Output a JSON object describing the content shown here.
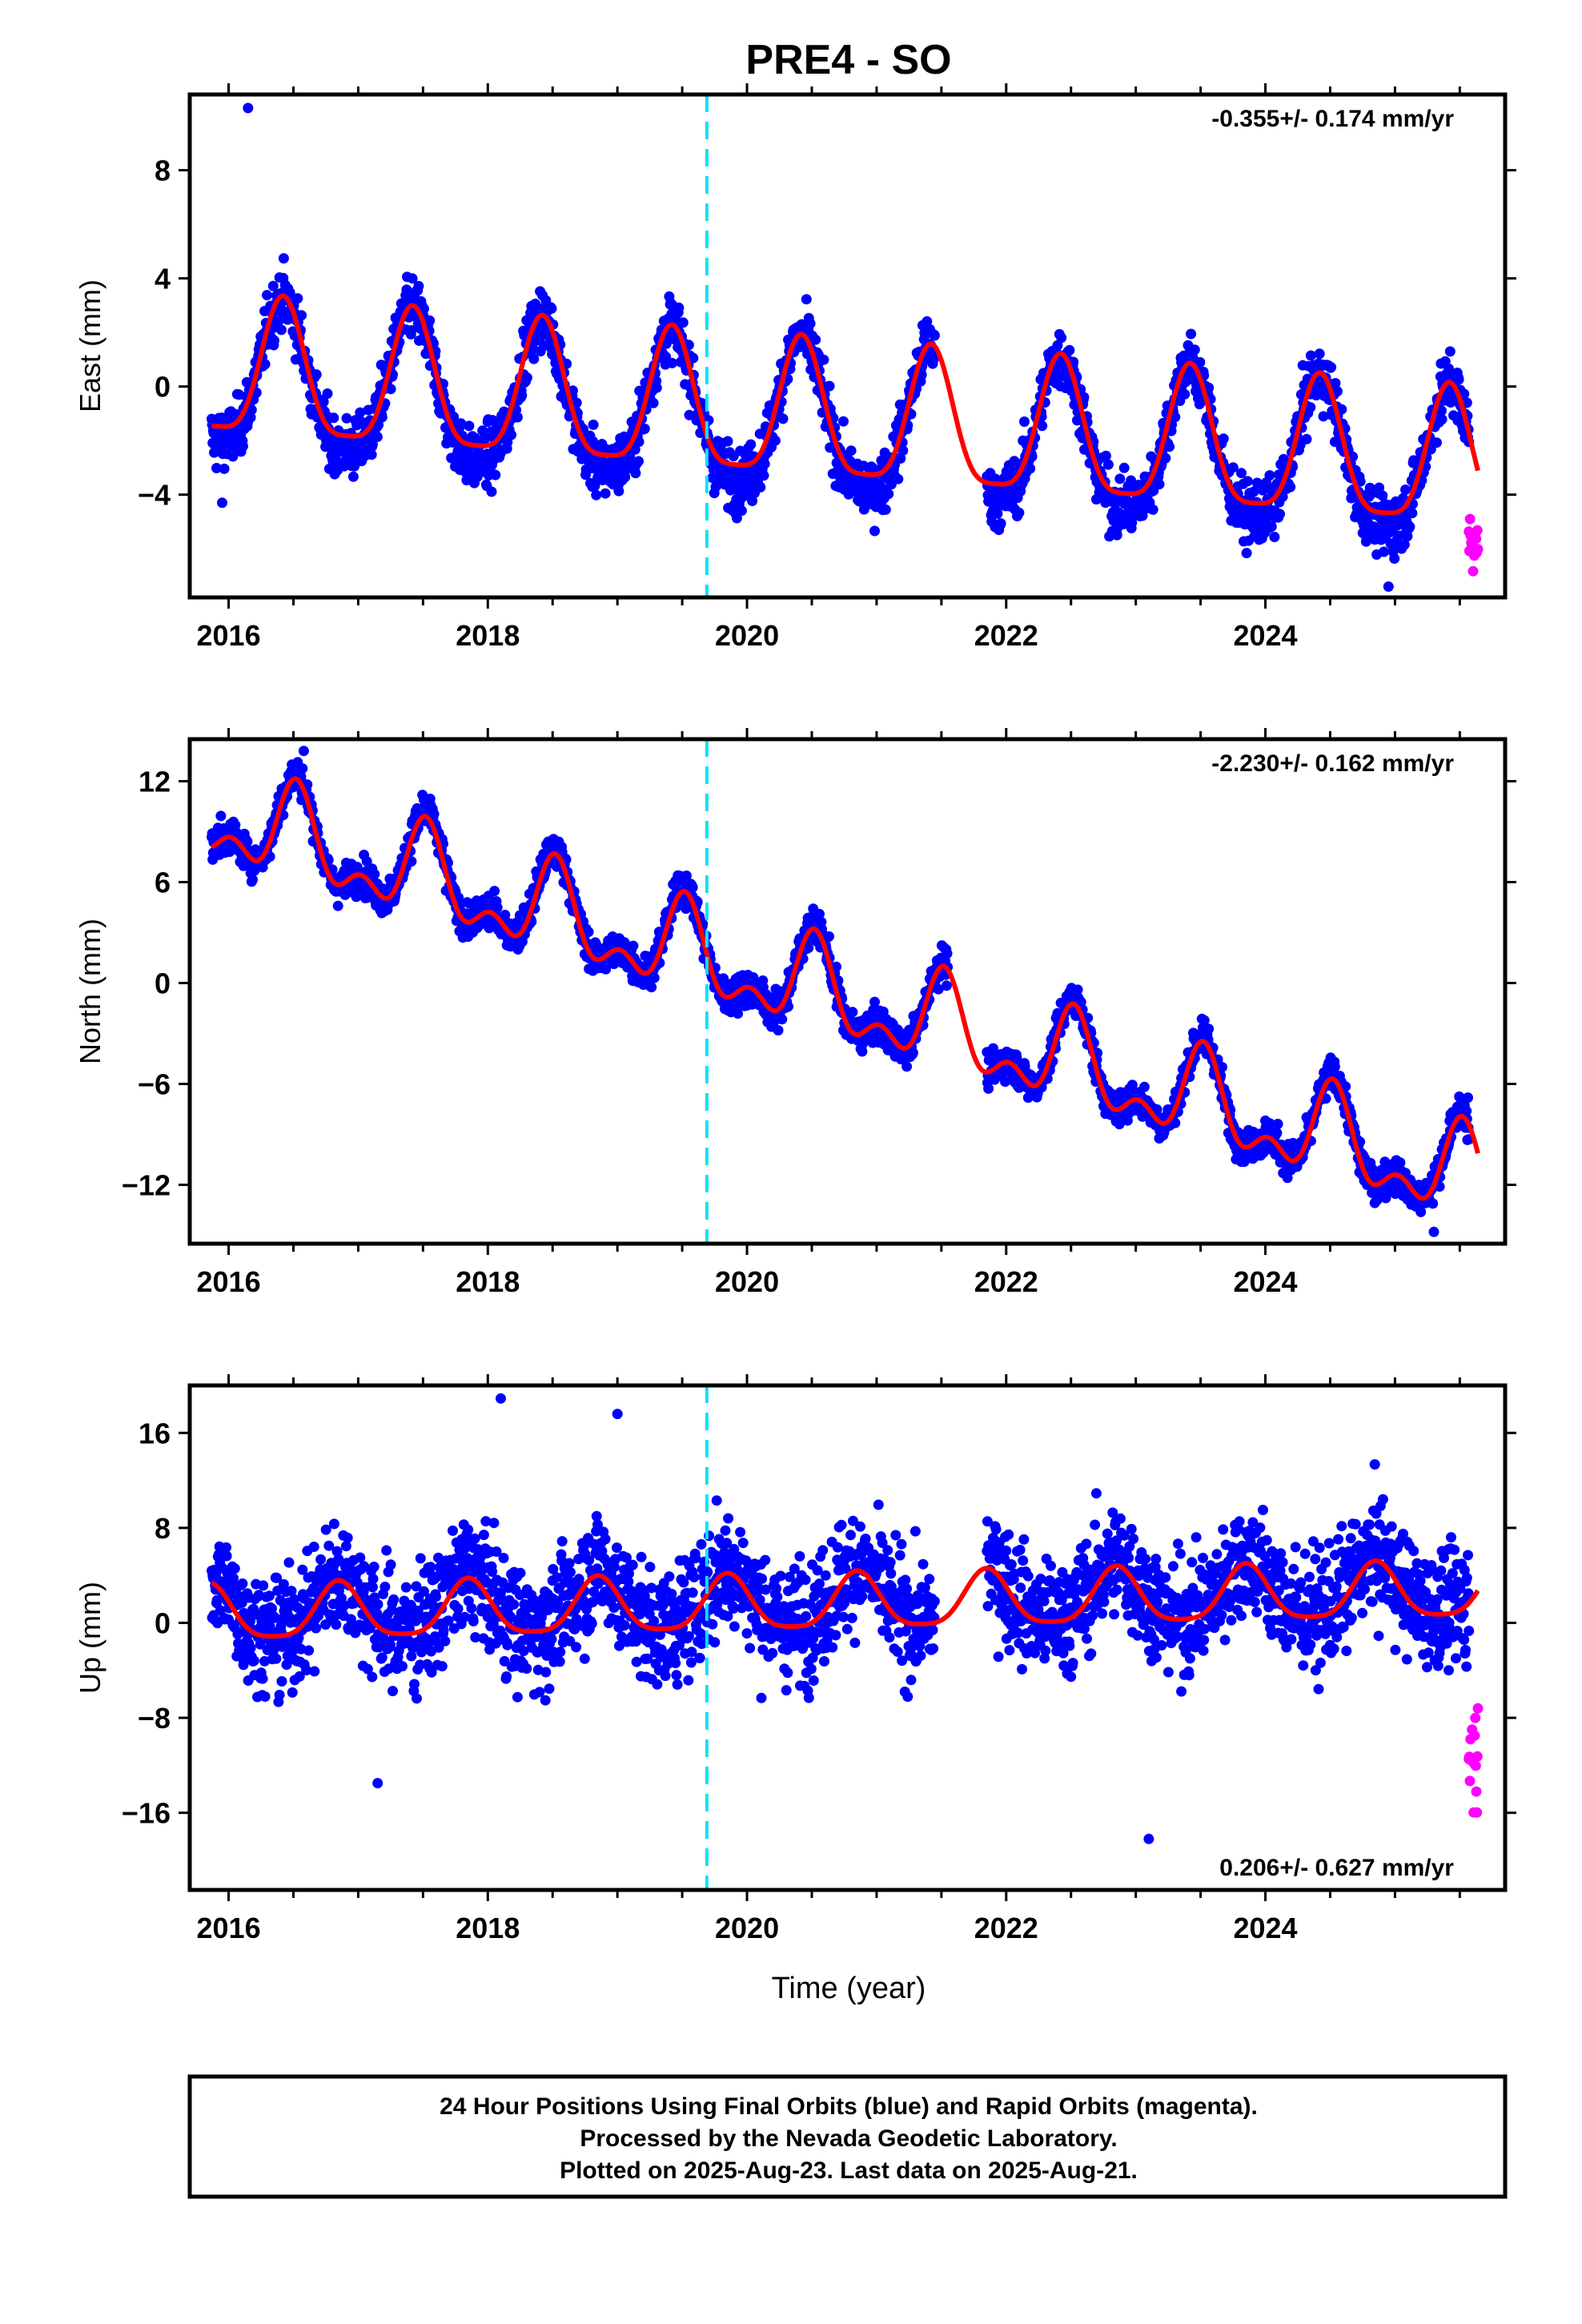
{
  "title": "PRE4 - SO",
  "xlabel": "Time (year)",
  "footer": {
    "line1": "24 Hour Positions Using Final Orbits (blue) and Rapid Orbits (magenta).",
    "line2": "Processed by the Nevada Geodetic Laboratory.",
    "line3": "Plotted on 2025-Aug-23. Last data on 2025-Aug-21."
  },
  "colors": {
    "final_orbits": "#0000ff",
    "rapid_orbits": "#ff00ff",
    "model_fit": "#ff0000",
    "event_line": "#00e5ff"
  },
  "chart_data": [
    {
      "type": "scatter",
      "ylabel": "East (mm)",
      "rate": "-0.355+/- 0.174 mm/yr",
      "rate_position": "top-right",
      "xlim": [
        2015.7,
        2025.85
      ],
      "ylim": [
        -7.8,
        10.8
      ],
      "xticks": [
        2016,
        2018,
        2020,
        2022,
        2024
      ],
      "xticklabels": [
        "2016",
        "2018",
        "2020",
        "2022",
        "2024"
      ],
      "yticks": [
        -4,
        0,
        4,
        8
      ],
      "yticklabels": [
        "−4",
        "0",
        "4",
        "8"
      ],
      "event_line_x": 2019.69,
      "series": [
        {
          "role": "final",
          "start": 2015.87,
          "end": 2025.57,
          "trend": -0.355,
          "offset": 0.2,
          "amplitude": 2.7,
          "semi_amp": 0.5,
          "peak": 2016.42,
          "noise": 0.9,
          "gaps": [
            [
              2021.45,
              2021.85
            ]
          ],
          "outliers": [
            [
              2016.15,
              10.3
            ],
            [
              2015.95,
              -4.3
            ],
            [
              2024.95,
              -7.4
            ]
          ]
        },
        {
          "role": "rapid",
          "start": 2025.57,
          "end": 2025.64,
          "trend": -0.355,
          "offset": -2.2,
          "amplitude": 0.0,
          "semi_amp": 0.0,
          "peak": 2016.42,
          "noise": 1.0,
          "count": 16
        }
      ],
      "model": {
        "start": 2015.87,
        "end": 2025.64,
        "trend": -0.355,
        "offset": 0.4,
        "amplitude": 2.5,
        "semi_amp": 0.6,
        "peak": 2016.42
      }
    },
    {
      "type": "scatter",
      "ylabel": "North (mm)",
      "rate": "-2.230+/- 0.162 mm/yr",
      "rate_position": "top-right",
      "xlim": [
        2015.7,
        2025.85
      ],
      "ylim": [
        -15.5,
        14.5
      ],
      "xticks": [
        2016,
        2018,
        2020,
        2022,
        2024
      ],
      "xticklabels": [
        "2016",
        "2018",
        "2020",
        "2022",
        "2024"
      ],
      "yticks": [
        -12,
        -6,
        0,
        6,
        12
      ],
      "yticklabels": [
        "−12",
        "−6",
        "0",
        "6",
        "12"
      ],
      "event_line_x": 2019.69,
      "series": [
        {
          "role": "final",
          "start": 2015.87,
          "end": 2025.57,
          "trend": -2.23,
          "offset": 9.7,
          "amplitude": 2.4,
          "semi_amp": 1.4,
          "peak": 2016.52,
          "noise": 0.85,
          "gaps": [
            [
              2021.55,
              2021.85
            ]
          ],
          "outliers": [
            [
              2016.58,
              13.8
            ],
            [
              2025.3,
              -14.8
            ]
          ]
        },
        {
          "role": "rapid",
          "start": 2025.57,
          "end": 2025.64,
          "trend": -2.23,
          "offset": -7.5,
          "amplitude": 0.0,
          "semi_amp": 0.0,
          "peak": 2016.52,
          "noise": 0.9,
          "count": 16
        }
      ],
      "model": {
        "start": 2015.87,
        "end": 2025.64,
        "trend": -2.23,
        "offset": 9.6,
        "amplitude": 2.3,
        "semi_amp": 1.4,
        "peak": 2016.52
      }
    },
    {
      "type": "scatter",
      "ylabel": "Up (mm)",
      "rate": "0.206+/- 0.627 mm/yr",
      "rate_position": "bottom-right",
      "xlim": [
        2015.7,
        2025.85
      ],
      "ylim": [
        -22.5,
        20.0
      ],
      "xticks": [
        2016,
        2018,
        2020,
        2022,
        2024
      ],
      "xticklabels": [
        "2016",
        "2018",
        "2020",
        "2022",
        "2024"
      ],
      "yticks": [
        -16,
        -8,
        0,
        8,
        16
      ],
      "yticklabels": [
        "−16",
        "−8",
        "0",
        "8",
        "16"
      ],
      "event_line_x": 2019.69,
      "series": [
        {
          "role": "final",
          "start": 2015.87,
          "end": 2025.57,
          "trend": 0.206,
          "offset": 1.0,
          "amplitude": 2.4,
          "semi_amp": 0.4,
          "peak": 2016.85,
          "noise": 4.0,
          "gaps": [
            [
              2021.45,
              2021.85
            ]
          ],
          "outliers": [
            [
              2018.1,
              18.9
            ],
            [
              2019.0,
              17.6
            ],
            [
              2017.15,
              -13.5
            ],
            [
              2023.1,
              -18.2
            ]
          ]
        },
        {
          "role": "rapid",
          "start": 2025.57,
          "end": 2025.64,
          "trend": 0.206,
          "offset": -13.0,
          "amplitude": 0.0,
          "semi_amp": 0.0,
          "peak": 2016.85,
          "noise": 4.0,
          "count": 18
        }
      ],
      "model": {
        "start": 2015.87,
        "end": 2025.64,
        "trend": 0.206,
        "offset": 0.6,
        "amplitude": 2.3,
        "semi_amp": 0.5,
        "peak": 2016.85
      }
    }
  ]
}
